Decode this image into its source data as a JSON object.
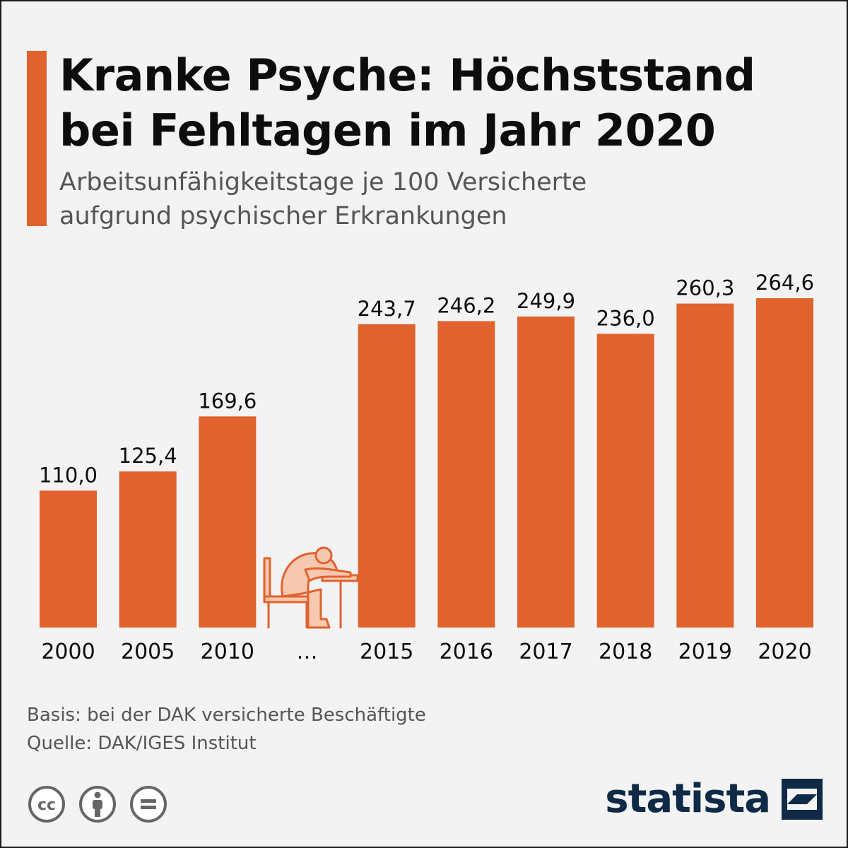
{
  "title_lines": [
    "Kranke Psyche: Höchststand",
    "bei Fehltagen im Jahr 2020"
  ],
  "subtitle_lines": [
    "Arbeitsunfähigkeitstage je 100 Versicherte",
    "aufgrund psychischer Erkrankungen"
  ],
  "colors": {
    "bar": "#e0622d",
    "accent": "#e0622d",
    "text_dark": "#0d0d0d",
    "text_muted": "#555555",
    "brand": "#0e2a47",
    "background": "#f3f3f3"
  },
  "chart_data": {
    "type": "bar",
    "categories": [
      "2000",
      "2005",
      "2010",
      "…",
      "2015",
      "2016",
      "2017",
      "2018",
      "2019",
      "2020"
    ],
    "values": [
      110.0,
      125.4,
      169.6,
      null,
      243.7,
      246.2,
      249.9,
      236.0,
      260.3,
      264.6
    ],
    "value_labels": [
      "110,0",
      "125,4",
      "169,6",
      "",
      "243,7",
      "246,2",
      "249,9",
      "236,0",
      "260,3",
      "264,6"
    ],
    "gap_icon": "person-slumped-at-desk-icon",
    "title": "",
    "xlabel": "",
    "ylabel": "",
    "ylim": [
      0,
      264.6
    ],
    "grid": false,
    "legend": "none"
  },
  "footer": {
    "basis": "Basis: bei der DAK versicherte Beschäftigte",
    "source": "Quelle: DAK/IGES Institut"
  },
  "license_icons": [
    "creative-commons-icon",
    "attribution-icon",
    "no-derivatives-icon"
  ],
  "brand": {
    "name": "statista",
    "logo_icon": "statista-logo-icon"
  }
}
